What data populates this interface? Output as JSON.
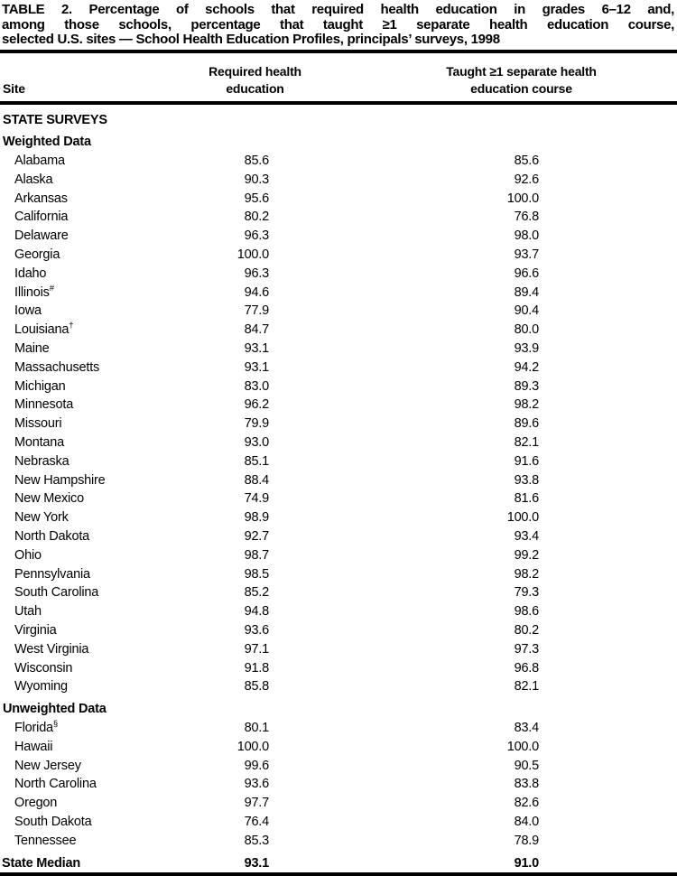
{
  "title": {
    "lines": [
      "TABLE 2. Percentage of schools that required health education in grades 6–12 and,",
      "among those schools, percentage that taught ≥1 separate health education course,",
      "selected U.S. sites — School Health Education Profiles, principals’ surveys, 1998"
    ]
  },
  "header": {
    "site": "Site",
    "required_line1": "Required health",
    "required_line2": "education",
    "taught_line1": "Taught ≥1 separate health",
    "taught_line2": "education course"
  },
  "table": {
    "groups": [
      {
        "label": "STATE SURVEYS",
        "rows": []
      },
      {
        "label": "Weighted Data",
        "rows": [
          {
            "site": "Alabama",
            "sup": "",
            "required": "85.6",
            "taught": "85.6"
          },
          {
            "site": "Alaska",
            "sup": "",
            "required": "90.3",
            "taught": "92.6"
          },
          {
            "site": "Arkansas",
            "sup": "",
            "required": "95.6",
            "taught": "100.0"
          },
          {
            "site": "California",
            "sup": "",
            "required": "80.2",
            "taught": "76.8"
          },
          {
            "site": "Delaware",
            "sup": "",
            "required": "96.3",
            "taught": "98.0"
          },
          {
            "site": "Georgia",
            "sup": "",
            "required": "100.0",
            "taught": "93.7"
          },
          {
            "site": "Idaho",
            "sup": "",
            "required": "96.3",
            "taught": "96.6"
          },
          {
            "site": "Illinois",
            "sup": "#",
            "required": "94.6",
            "taught": "89.4"
          },
          {
            "site": "Iowa",
            "sup": "",
            "required": "77.9",
            "taught": "90.4"
          },
          {
            "site": "Louisiana",
            "sup": "†",
            "required": "84.7",
            "taught": "80.0"
          },
          {
            "site": "Maine",
            "sup": "",
            "required": "93.1",
            "taught": "93.9"
          },
          {
            "site": "Massachusetts",
            "sup": "",
            "required": "93.1",
            "taught": "94.2"
          },
          {
            "site": "Michigan",
            "sup": "",
            "required": "83.0",
            "taught": "89.3"
          },
          {
            "site": "Minnesota",
            "sup": "",
            "required": "96.2",
            "taught": "98.2"
          },
          {
            "site": "Missouri",
            "sup": "",
            "required": "79.9",
            "taught": "89.6"
          },
          {
            "site": "Montana",
            "sup": "",
            "required": "93.0",
            "taught": "82.1"
          },
          {
            "site": "Nebraska",
            "sup": "",
            "required": "85.1",
            "taught": "91.6"
          },
          {
            "site": "New Hampshire",
            "sup": "",
            "required": "88.4",
            "taught": "93.8"
          },
          {
            "site": "New Mexico",
            "sup": "",
            "required": "74.9",
            "taught": "81.6"
          },
          {
            "site": "New York",
            "sup": "",
            "required": "98.9",
            "taught": "100.0"
          },
          {
            "site": "North Dakota",
            "sup": "",
            "required": "92.7",
            "taught": "93.4"
          },
          {
            "site": "Ohio",
            "sup": "",
            "required": "98.7",
            "taught": "99.2"
          },
          {
            "site": "Pennsylvania",
            "sup": "",
            "required": "98.5",
            "taught": "98.2"
          },
          {
            "site": "South Carolina",
            "sup": "",
            "required": "85.2",
            "taught": "79.3"
          },
          {
            "site": "Utah",
            "sup": "",
            "required": "94.8",
            "taught": "98.6"
          },
          {
            "site": "Virginia",
            "sup": "",
            "required": "93.6",
            "taught": "80.2"
          },
          {
            "site": "West Virginia",
            "sup": "",
            "required": "97.1",
            "taught": "97.3"
          },
          {
            "site": "Wisconsin",
            "sup": "",
            "required": "91.8",
            "taught": "96.8"
          },
          {
            "site": "Wyoming",
            "sup": "",
            "required": "85.8",
            "taught": "82.1"
          }
        ]
      },
      {
        "label": "Unweighted Data",
        "rows": [
          {
            "site": "Florida",
            "sup": "§",
            "required": "80.1",
            "taught": "83.4"
          },
          {
            "site": "Hawaii",
            "sup": "",
            "required": "100.0",
            "taught": "100.0"
          },
          {
            "site": "New Jersey",
            "sup": "",
            "required": "99.6",
            "taught": "90.5"
          },
          {
            "site": "North Carolina",
            "sup": "",
            "required": "93.6",
            "taught": "83.8"
          },
          {
            "site": "Oregon",
            "sup": "",
            "required": "97.7",
            "taught": "82.6"
          },
          {
            "site": "South Dakota",
            "sup": "",
            "required": "76.4",
            "taught": "84.0"
          },
          {
            "site": "Tennessee",
            "sup": "",
            "required": "85.3",
            "taught": "78.9"
          }
        ]
      }
    ],
    "median": {
      "site": "State Median",
      "required": "93.1",
      "taught": "91.0"
    }
  }
}
